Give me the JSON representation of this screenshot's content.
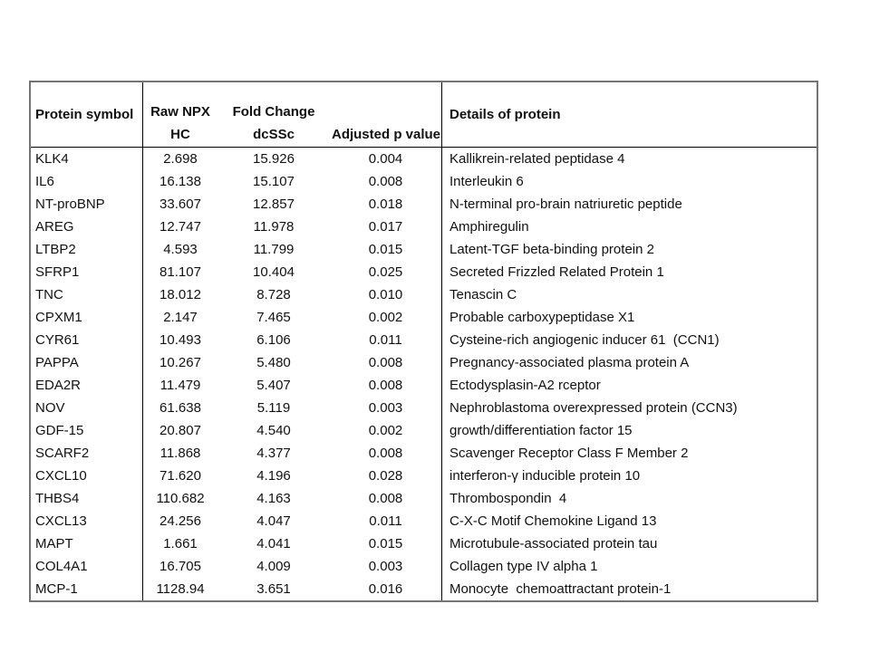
{
  "colors": {
    "page_background": "#ffffff",
    "outer_border": "#747474",
    "inner_lines": "#000000",
    "text": "#111111"
  },
  "table": {
    "header": {
      "protein_symbol": "Protein symbol",
      "raw_npx": "Raw NPX",
      "fold_change": "Fold Change",
      "hc": "HC",
      "dcssc": "dcSSc",
      "adjusted_p_value": "Adjusted p value",
      "details": "Details of protein"
    },
    "rows": [
      {
        "symbol": "KLK4",
        "raw_npx_hc": "2.698",
        "fold_change_dcssc": "15.926",
        "adjusted_p_value": "0.004",
        "details": "Kallikrein-related peptidase 4"
      },
      {
        "symbol": "IL6",
        "raw_npx_hc": "16.138",
        "fold_change_dcssc": "15.107",
        "adjusted_p_value": "0.008",
        "details": "Interleukin 6"
      },
      {
        "symbol": "NT-proBNP",
        "raw_npx_hc": "33.607",
        "fold_change_dcssc": "12.857",
        "adjusted_p_value": "0.018",
        "details": "N-terminal pro-brain natriuretic peptide"
      },
      {
        "symbol": "AREG",
        "raw_npx_hc": "12.747",
        "fold_change_dcssc": "11.978",
        "adjusted_p_value": "0.017",
        "details": "Amphiregulin"
      },
      {
        "symbol": "LTBP2",
        "raw_npx_hc": "4.593",
        "fold_change_dcssc": "11.799",
        "adjusted_p_value": "0.015",
        "details": "Latent-TGF beta-binding protein 2"
      },
      {
        "symbol": "SFRP1",
        "raw_npx_hc": "81.107",
        "fold_change_dcssc": "10.404",
        "adjusted_p_value": "0.025",
        "details": "Secreted Frizzled Related Protein 1"
      },
      {
        "symbol": "TNC",
        "raw_npx_hc": "18.012",
        "fold_change_dcssc": "8.728",
        "adjusted_p_value": "0.010",
        "details": "Tenascin C"
      },
      {
        "symbol": "CPXM1",
        "raw_npx_hc": "2.147",
        "fold_change_dcssc": "7.465",
        "adjusted_p_value": "0.002",
        "details": "Probable carboxypeptidase X1"
      },
      {
        "symbol": "CYR61",
        "raw_npx_hc": "10.493",
        "fold_change_dcssc": "6.106",
        "adjusted_p_value": "0.011",
        "details": "Cysteine-rich angiogenic inducer 61  (CCN1)"
      },
      {
        "symbol": "PAPPA",
        "raw_npx_hc": "10.267",
        "fold_change_dcssc": "5.480",
        "adjusted_p_value": "0.008",
        "details": "Pregnancy-associated plasma protein A"
      },
      {
        "symbol": "EDA2R",
        "raw_npx_hc": "11.479",
        "fold_change_dcssc": "5.407",
        "adjusted_p_value": "0.008",
        "details": "Ectodysplasin-A2 rceptor"
      },
      {
        "symbol": "NOV",
        "raw_npx_hc": "61.638",
        "fold_change_dcssc": "5.119",
        "adjusted_p_value": "0.003",
        "details": "Nephroblastoma overexpressed protein (CCN3)"
      },
      {
        "symbol": "GDF-15",
        "raw_npx_hc": "20.807",
        "fold_change_dcssc": "4.540",
        "adjusted_p_value": "0.002",
        "details": "growth/differentiation factor 15"
      },
      {
        "symbol": "SCARF2",
        "raw_npx_hc": "11.868",
        "fold_change_dcssc": "4.377",
        "adjusted_p_value": "0.008",
        "details": "Scavenger Receptor Class F Member 2"
      },
      {
        "symbol": "CXCL10",
        "raw_npx_hc": "71.620",
        "fold_change_dcssc": "4.196",
        "adjusted_p_value": "0.028",
        "details": "interferon-γ inducible protein 10"
      },
      {
        "symbol": "THBS4",
        "raw_npx_hc": "110.682",
        "fold_change_dcssc": "4.163",
        "adjusted_p_value": "0.008",
        "details": "Thrombospondin  4"
      },
      {
        "symbol": "CXCL13",
        "raw_npx_hc": "24.256",
        "fold_change_dcssc": "4.047",
        "adjusted_p_value": "0.011",
        "details": "C-X-C Motif Chemokine Ligand 13"
      },
      {
        "symbol": "MAPT",
        "raw_npx_hc": "1.661",
        "fold_change_dcssc": "4.041",
        "adjusted_p_value": "0.015",
        "details": "Microtubule-associated protein tau"
      },
      {
        "symbol": "COL4A1",
        "raw_npx_hc": "16.705",
        "fold_change_dcssc": "4.009",
        "adjusted_p_value": "0.003",
        "details": "Collagen type IV alpha 1"
      },
      {
        "symbol": "MCP-1",
        "raw_npx_hc": "1128.94",
        "fold_change_dcssc": "3.651",
        "adjusted_p_value": "0.016",
        "details": "Monocyte  chemoattractant protein-1"
      }
    ]
  }
}
